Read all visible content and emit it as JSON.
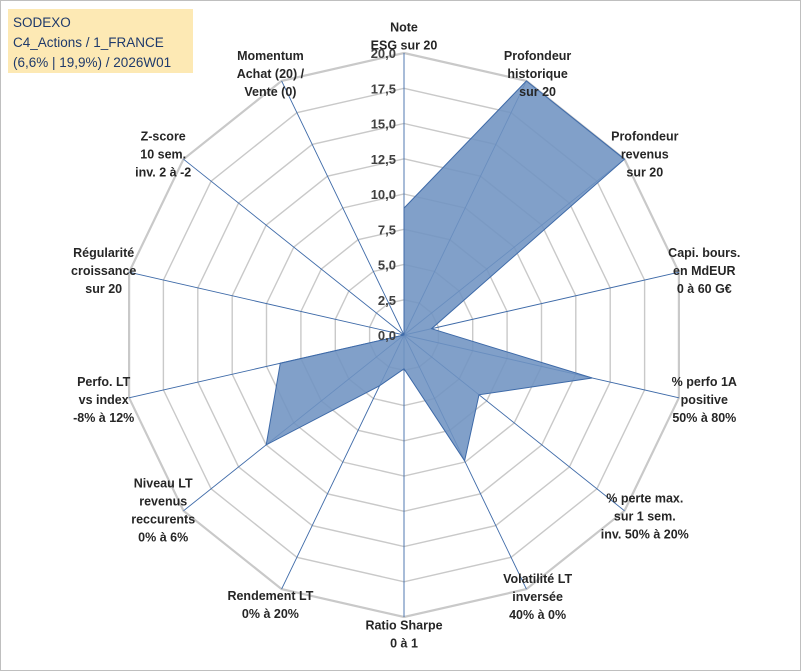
{
  "header": {
    "line1": "SODEXO",
    "line2": "C4_Actions / 1_FRANCE",
    "line3": "(6,6% | 19,9%) / 2026W01"
  },
  "chart_data": {
    "type": "radar",
    "scale": {
      "min": 0,
      "max": 20,
      "step": 2.5
    },
    "tick_labels": [
      "0,0",
      "2,5",
      "5,0",
      "7,5",
      "10,0",
      "12,5",
      "15,0",
      "17,5",
      "20,0"
    ],
    "axes": [
      {
        "lines": [
          "Note",
          "ESG sur 20"
        ],
        "value": 9.0
      },
      {
        "lines": [
          "Profondeur",
          "historique",
          "sur 20"
        ],
        "value": 20.0
      },
      {
        "lines": [
          "Profondeur",
          "revenus",
          "sur 20"
        ],
        "value": 20.0
      },
      {
        "lines": [
          "Capi. bours.",
          "en MdEUR",
          "0 à 60 G€"
        ],
        "value": 2.0
      },
      {
        "lines": [
          "% perfo 1A",
          "positive",
          "50% à 80%"
        ],
        "value": 13.7
      },
      {
        "lines": [
          "% perte max.",
          "sur 1 sem.",
          "inv. 50% à 20%"
        ],
        "value": 6.8
      },
      {
        "lines": [
          "Volatilité LT",
          "inversée",
          "40% à 0%"
        ],
        "value": 9.9
      },
      {
        "lines": [
          "Ratio Sharpe",
          "0 à 1"
        ],
        "value": 2.4
      },
      {
        "lines": [
          "Rendement LT",
          "0% à 20%"
        ],
        "value": 4.0
      },
      {
        "lines": [
          "Niveau LT",
          "revenus",
          "reccurents",
          "0% à 6%"
        ],
        "value": 12.5
      },
      {
        "lines": [
          "Perfo. LT",
          "vs index",
          "-8% à 12%"
        ],
        "value": 9.0
      },
      {
        "lines": [
          "Régularité",
          "croissance",
          "sur 20"
        ],
        "value": 0.0
      },
      {
        "lines": [
          "Z-score",
          "10 sem.",
          "inv. 2 à -2"
        ],
        "value": 0.0
      },
      {
        "lines": [
          "Momentum",
          "Achat (20) /",
          "Vente (0)"
        ],
        "value": 0.0
      }
    ],
    "colors": {
      "fill": "#6f93c2",
      "stroke": "#3e6aa8",
      "grid": "#c9c9c9",
      "spokes": "#3e6aa8"
    }
  }
}
